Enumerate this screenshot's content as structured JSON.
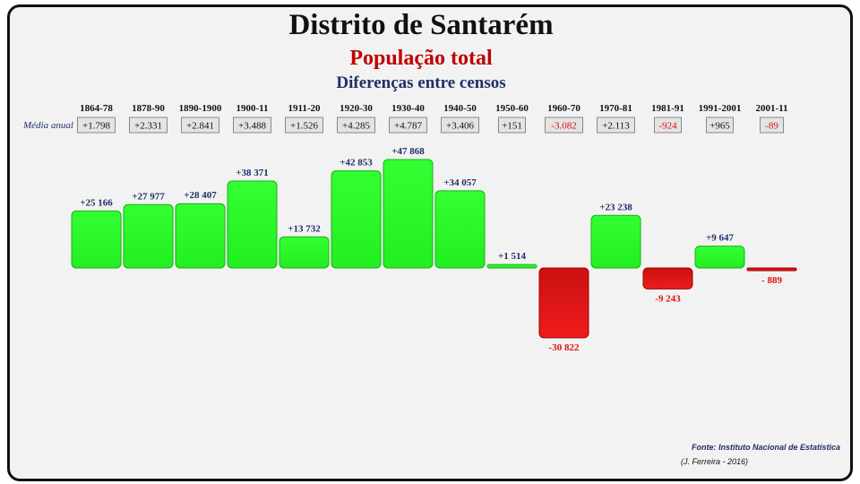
{
  "chart_data": {
    "type": "bar",
    "title": "Distrito de Santarém",
    "subtitle": "População total",
    "subtitle2": "Diferenças entre censos",
    "row_label": "Média anual",
    "categories": [
      "1864-78",
      "1878-90",
      "1890-1900",
      "1900-11",
      "1911-20",
      "1920-30",
      "1930-40",
      "1940-50",
      "1950-60",
      "1960-70",
      "1970-81",
      "1981-91",
      "1991-2001",
      "2001-11"
    ],
    "values": [
      25166,
      27977,
      28407,
      38371,
      13732,
      42853,
      47868,
      34057,
      1514,
      -30822,
      23238,
      -9243,
      9647,
      -889
    ],
    "value_labels": [
      "+25 166",
      "+27 977",
      "+28 407",
      "+38 371",
      "+13 732",
      "+42 853",
      "+47 868",
      "+34 057",
      "+1 514",
      "-30 822",
      "+23 238",
      "-9 243",
      "+9 647",
      "- 889"
    ],
    "annual_means": [
      1798,
      2331,
      2841,
      3488,
      1526,
      4285,
      4787,
      3406,
      151,
      -3082,
      2113,
      -924,
      965,
      -89
    ],
    "annual_mean_labels": [
      "+1.798",
      "+2.331",
      "+2.841",
      "+3.488",
      "+1.526",
      "+4.285",
      "+4.787",
      "+3.406",
      "+151",
      "-3.082",
      "+2.113",
      "-924",
      "+965",
      "-89"
    ],
    "colors": {
      "positive": "#22ee22",
      "negative": "#ee1c1c",
      "positive_label": "#1f2f66",
      "negative_label": "#dd1111"
    },
    "grid": false,
    "legend": "none"
  },
  "source": "Fonte: Instituto Nacional de Estatística",
  "author": "(J. Ferreira - 2016)"
}
